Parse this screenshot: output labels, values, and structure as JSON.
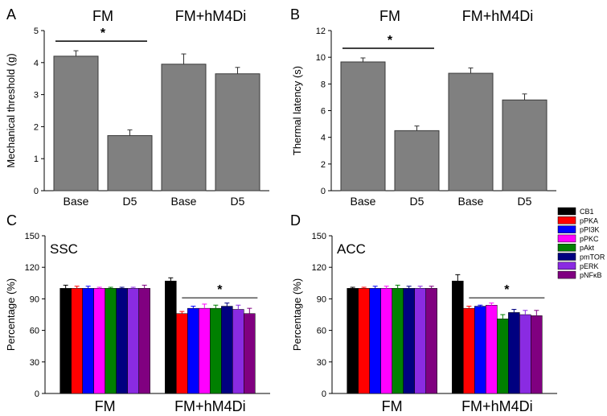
{
  "chart_data": [
    {
      "panel": "A",
      "type": "bar",
      "categories": [
        "Base",
        "D5",
        "Base",
        "D5"
      ],
      "group_labels": [
        "FM",
        "FM+hM4Di"
      ],
      "values": [
        4.2,
        1.72,
        3.95,
        3.65
      ],
      "errors": [
        0.17,
        0.18,
        0.32,
        0.2
      ],
      "ylabel": "Mechanical threshold (g)",
      "ylim": [
        0,
        5
      ],
      "yticks": [
        "0",
        "1",
        "2",
        "3",
        "4",
        "5"
      ],
      "bar_color": "#808080",
      "significance": [
        {
          "from": 0,
          "to": 1,
          "mark": "*"
        }
      ]
    },
    {
      "panel": "B",
      "type": "bar",
      "categories": [
        "Base",
        "D5",
        "Base",
        "D5"
      ],
      "group_labels": [
        "FM",
        "FM+hM4Di"
      ],
      "values": [
        9.65,
        4.5,
        8.8,
        6.8
      ],
      "errors": [
        0.3,
        0.35,
        0.4,
        0.45
      ],
      "ylabel": "Thermal latency (s)",
      "ylim": [
        0,
        12
      ],
      "yticks": [
        "0",
        "2",
        "4",
        "6",
        "8",
        "10",
        "12"
      ],
      "bar_color": "#808080",
      "significance": [
        {
          "from": 0,
          "to": 1,
          "mark": "*"
        }
      ]
    },
    {
      "panel": "C",
      "type": "bar",
      "inset_label": "SSC",
      "categories": [
        "FM",
        "FM+hM4Di"
      ],
      "ylabel": "Percentage (%)",
      "ylim": [
        0,
        150
      ],
      "yticks": [
        "0",
        "30",
        "60",
        "90",
        "120",
        "150"
      ],
      "series": [
        {
          "name": "CB1",
          "color": "#000000",
          "values": [
            100,
            107
          ],
          "errors": [
            3,
            3
          ]
        },
        {
          "name": "pPKA",
          "color": "#ff0000",
          "values": [
            100,
            76
          ],
          "errors": [
            2,
            2
          ]
        },
        {
          "name": "pPI3K",
          "color": "#0000ff",
          "values": [
            100,
            81
          ],
          "errors": [
            2,
            2
          ]
        },
        {
          "name": "pPKC",
          "color": "#ff00ff",
          "values": [
            100,
            81
          ],
          "errors": [
            1,
            4
          ]
        },
        {
          "name": "pAkt",
          "color": "#008000",
          "values": [
            100,
            81
          ],
          "errors": [
            1,
            3
          ]
        },
        {
          "name": "pmTOR",
          "color": "#000080",
          "values": [
            100,
            83
          ],
          "errors": [
            1,
            3
          ]
        },
        {
          "name": "pERK",
          "color": "#8a2be2",
          "values": [
            100,
            80
          ],
          "errors": [
            1,
            4
          ]
        },
        {
          "name": "pNFκB",
          "color": "#800080",
          "values": [
            100,
            76
          ],
          "errors": [
            3,
            5
          ]
        }
      ],
      "significance": [
        {
          "group": 1,
          "from_series": 1,
          "to_series": 7,
          "mark": "*"
        }
      ]
    },
    {
      "panel": "D",
      "type": "bar",
      "inset_label": "ACC",
      "categories": [
        "FM",
        "FM+hM4Di"
      ],
      "ylabel": "Percentage (%)",
      "ylim": [
        0,
        150
      ],
      "yticks": [
        "0",
        "30",
        "60",
        "90",
        "120",
        "150"
      ],
      "series": [
        {
          "name": "CB1",
          "color": "#000000",
          "values": [
            100,
            107
          ],
          "errors": [
            1,
            6
          ]
        },
        {
          "name": "pPKA",
          "color": "#ff0000",
          "values": [
            100,
            81
          ],
          "errors": [
            1,
            2
          ]
        },
        {
          "name": "pPI3K",
          "color": "#0000ff",
          "values": [
            100,
            83
          ],
          "errors": [
            2,
            1
          ]
        },
        {
          "name": "pPKC",
          "color": "#ff00ff",
          "values": [
            100,
            84
          ],
          "errors": [
            2,
            2
          ]
        },
        {
          "name": "pAkt",
          "color": "#008000",
          "values": [
            100,
            71
          ],
          "errors": [
            3,
            4
          ]
        },
        {
          "name": "pmTOR",
          "color": "#000080",
          "values": [
            100,
            77
          ],
          "errors": [
            2,
            3
          ]
        },
        {
          "name": "pERK",
          "color": "#8a2be2",
          "values": [
            100,
            75
          ],
          "errors": [
            2,
            4
          ]
        },
        {
          "name": "pNFκB",
          "color": "#800080",
          "values": [
            100,
            74
          ],
          "errors": [
            2,
            5
          ]
        }
      ],
      "significance": [
        {
          "group": 1,
          "from_series": 1,
          "to_series": 7,
          "mark": "*"
        }
      ]
    }
  ]
}
